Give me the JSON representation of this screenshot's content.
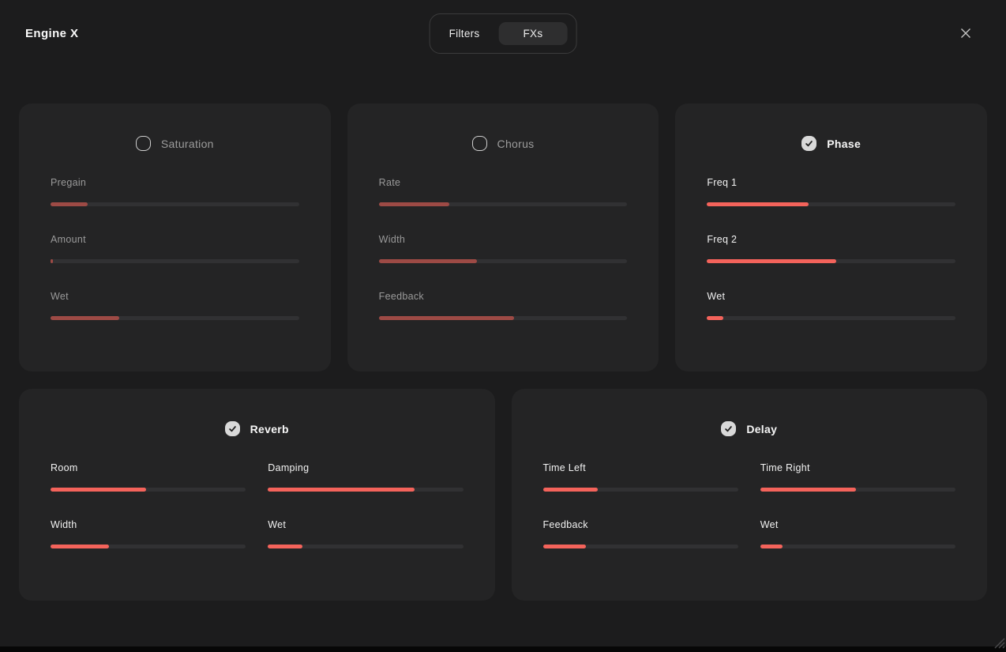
{
  "header": {
    "app_title": "Engine X",
    "tabs": [
      {
        "label": "Filters",
        "active": false
      },
      {
        "label": "FXs",
        "active": true
      }
    ],
    "close_icon": "close-x"
  },
  "colors": {
    "accent_active": "#f4635b",
    "accent_muted": "#9d4a45",
    "card_bg": "#242425",
    "page_bg": "#1c1c1d",
    "track": "#313133"
  },
  "fx_cards": [
    {
      "title": "Saturation",
      "enabled": false,
      "sliders": [
        {
          "label": "Pregain",
          "value": 15
        },
        {
          "label": "Amount",
          "value": 0.8
        },
        {
          "label": "Wet",
          "value": 27.5
        }
      ]
    },
    {
      "title": "Chorus",
      "enabled": false,
      "sliders": [
        {
          "label": "Rate",
          "value": 28.5
        },
        {
          "label": "Width",
          "value": 39.5
        },
        {
          "label": "Feedback",
          "value": 54.5
        }
      ]
    },
    {
      "title": "Phase",
      "enabled": true,
      "sliders": [
        {
          "label": "Freq 1",
          "value": 41
        },
        {
          "label": "Freq 2",
          "value": 52
        },
        {
          "label": "Wet",
          "value": 6.5
        }
      ]
    },
    {
      "title": "Reverb",
      "enabled": true,
      "sliders": [
        {
          "label": "Room",
          "value": 49
        },
        {
          "label": "Damping",
          "value": 75
        },
        {
          "label": "Width",
          "value": 30
        },
        {
          "label": "Wet",
          "value": 17.5
        }
      ]
    },
    {
      "title": "Delay",
      "enabled": true,
      "sliders": [
        {
          "label": "Time Left",
          "value": 28
        },
        {
          "label": "Time Right",
          "value": 49
        },
        {
          "label": "Feedback",
          "value": 22
        },
        {
          "label": "Wet",
          "value": 11.5
        }
      ]
    }
  ]
}
